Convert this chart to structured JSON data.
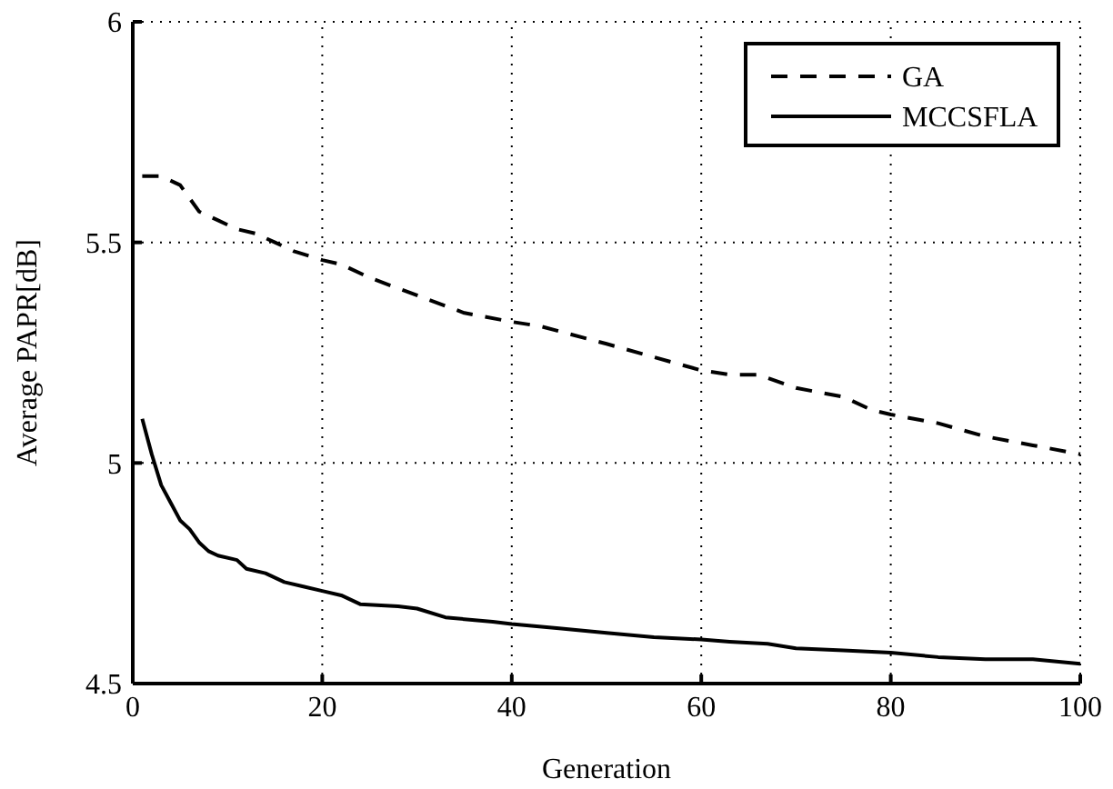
{
  "chart_data": {
    "type": "line",
    "xlabel": "Generation",
    "ylabel": "Average PAPR[dB]",
    "xlim": [
      0,
      100
    ],
    "xticks": [
      0,
      20,
      40,
      60,
      80,
      100
    ],
    "ylim": [
      4.5,
      6
    ],
    "yticks": [
      4.5,
      5,
      5.5,
      6
    ],
    "grid": true,
    "legend": "top right",
    "series": [
      {
        "name": "GA",
        "color": "#000000",
        "line_style": "dashed",
        "x": [
          1,
          3,
          5,
          7,
          9,
          11,
          13,
          15,
          17,
          20,
          22,
          25,
          30,
          35,
          40,
          43,
          50,
          55,
          60,
          63,
          66,
          70,
          75,
          78,
          80,
          85,
          90,
          95,
          100
        ],
        "values": [
          5.65,
          5.65,
          5.63,
          5.57,
          5.55,
          5.53,
          5.52,
          5.5,
          5.48,
          5.46,
          5.45,
          5.42,
          5.38,
          5.34,
          5.32,
          5.31,
          5.27,
          5.24,
          5.21,
          5.2,
          5.2,
          5.17,
          5.15,
          5.12,
          5.11,
          5.09,
          5.06,
          5.04,
          5.02
        ]
      },
      {
        "name": "MCCSFLA",
        "color": "#000000",
        "line_style": "solid",
        "x": [
          1,
          2,
          3,
          4,
          5,
          6,
          7,
          8,
          9,
          11,
          12,
          14,
          16,
          18,
          20,
          22,
          24,
          28,
          30,
          33,
          38,
          40,
          45,
          50,
          55,
          60,
          63,
          67,
          70,
          75,
          80,
          85,
          90,
          95,
          100
        ],
        "values": [
          5.1,
          5.02,
          4.95,
          4.91,
          4.87,
          4.85,
          4.82,
          4.8,
          4.79,
          4.78,
          4.76,
          4.75,
          4.73,
          4.72,
          4.71,
          4.7,
          4.68,
          4.675,
          4.67,
          4.65,
          4.64,
          4.635,
          4.625,
          4.615,
          4.605,
          4.6,
          4.595,
          4.59,
          4.58,
          4.575,
          4.57,
          4.56,
          4.555,
          4.555,
          4.545
        ]
      }
    ]
  }
}
